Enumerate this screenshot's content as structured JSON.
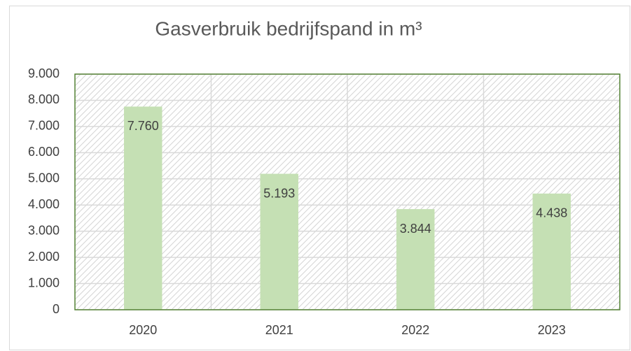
{
  "chart_data": {
    "type": "bar",
    "title": "Gasverbruik bedrijfspand in m³",
    "categories": [
      "2020",
      "2021",
      "2022",
      "2023"
    ],
    "values": [
      7760,
      5193,
      3844,
      4438
    ],
    "value_labels": [
      "7.760",
      "5.193",
      "3.844",
      "4.438"
    ],
    "color": "#c5e0b4",
    "ylim": [
      0,
      9000
    ],
    "yticks": [
      0,
      {
        "value": 1000,
        "label": "1.000"
      },
      {
        "value": 2000,
        "label": "2.000"
      },
      {
        "value": 3000,
        "label": "3.000"
      },
      {
        "value": 4000,
        "label": "4.000"
      },
      {
        "value": 5000,
        "label": "5.000"
      },
      {
        "value": 6000,
        "label": "6.000"
      },
      {
        "value": 7000,
        "label": "7.000"
      },
      {
        "value": 8000,
        "label": "8.000"
      },
      {
        "value": 9000,
        "label": "9.000"
      }
    ],
    "grid": true
  }
}
